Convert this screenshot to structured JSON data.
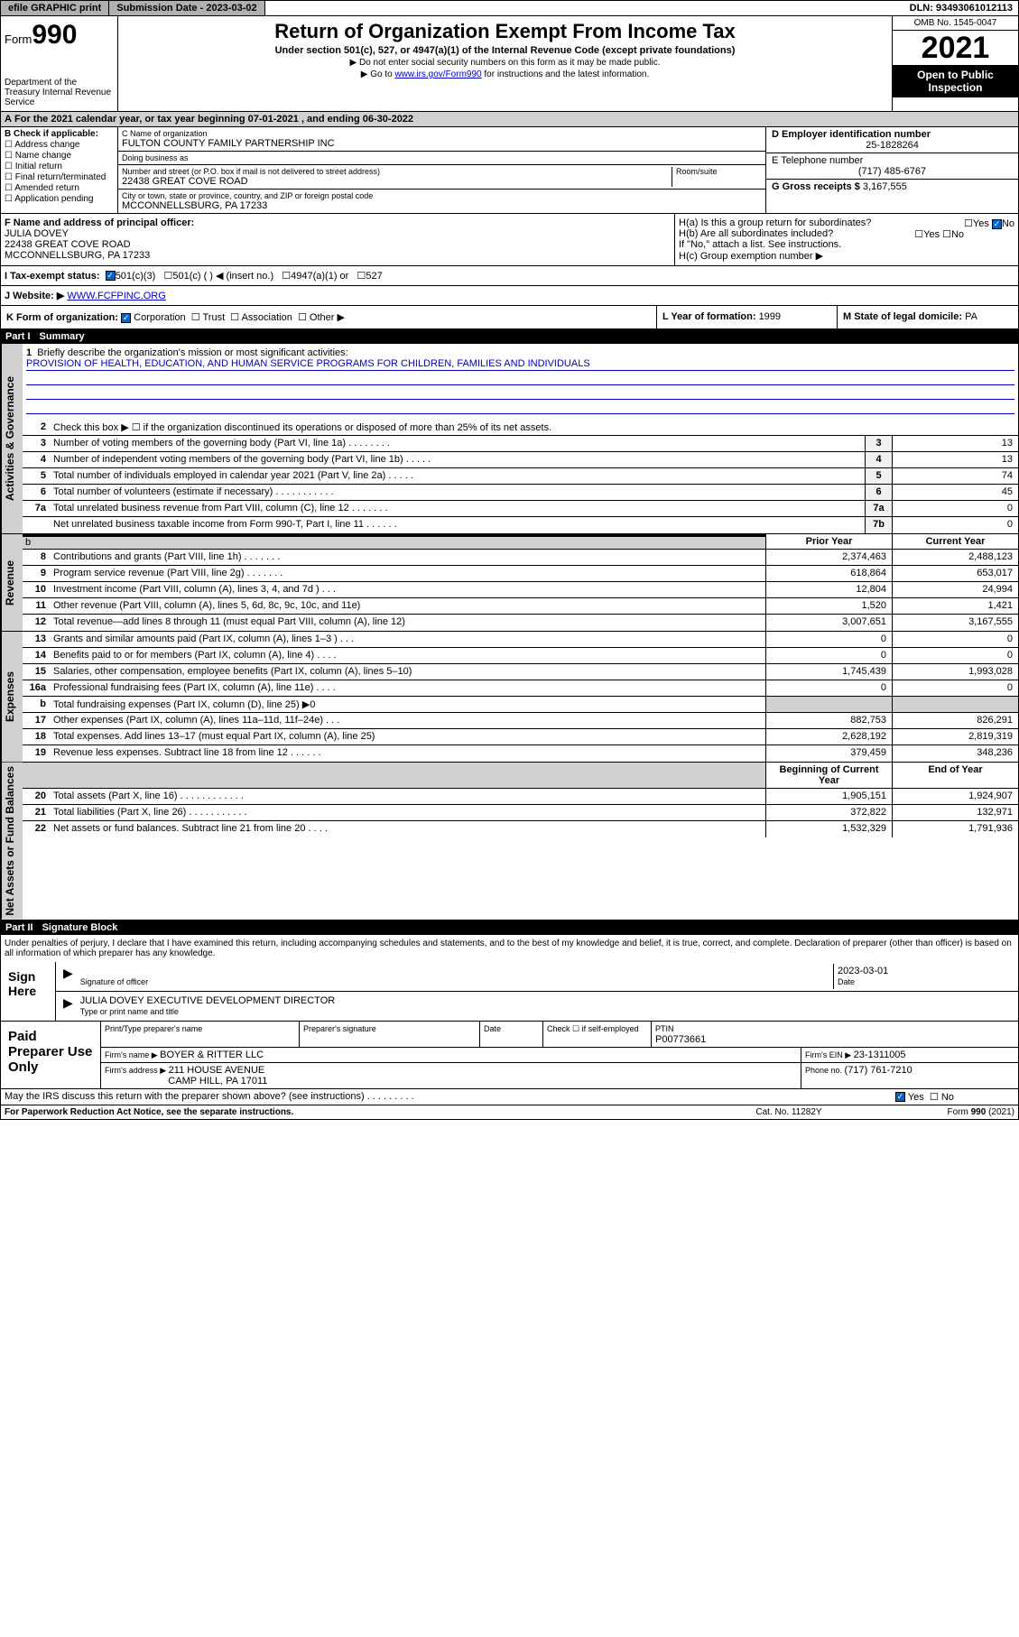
{
  "topbar": {
    "efile": "efile GRAPHIC print",
    "subdate_label": "Submission Date - ",
    "subdate": "2023-03-02",
    "dln_label": "DLN: ",
    "dln": "93493061012113"
  },
  "header": {
    "form_label": "Form",
    "form_num": "990",
    "dept": "Department of the Treasury Internal Revenue Service",
    "title": "Return of Organization Exempt From Income Tax",
    "subtitle": "Under section 501(c), 527, or 4947(a)(1) of the Internal Revenue Code (except private foundations)",
    "note1": "▶ Do not enter social security numbers on this form as it may be made public.",
    "note2_pre": "▶ Go to ",
    "note2_link": "www.irs.gov/Form990",
    "note2_post": " for instructions and the latest information.",
    "omb": "OMB No. 1545-0047",
    "year": "2021",
    "open": "Open to Public Inspection"
  },
  "a": {
    "text": "For the 2021 calendar year, or tax year beginning 07-01-2021   , and ending 06-30-2022"
  },
  "b": {
    "label": "B Check if applicable:",
    "opts": [
      "Address change",
      "Name change",
      "Initial return",
      "Final return/terminated",
      "Amended return",
      "Application pending"
    ]
  },
  "c": {
    "name_label": "C Name of organization",
    "name": "FULTON COUNTY FAMILY PARTNERSHIP INC",
    "dba_label": "Doing business as",
    "dba": "",
    "street_label": "Number and street (or P.O. box if mail is not delivered to street address)",
    "suite_label": "Room/suite",
    "street": "22438 GREAT COVE ROAD",
    "city_label": "City or town, state or province, country, and ZIP or foreign postal code",
    "city": "MCCONNELLSBURG, PA  17233"
  },
  "d": {
    "label": "D Employer identification number",
    "val": "25-1828264"
  },
  "e": {
    "label": "E Telephone number",
    "val": "(717) 485-6767"
  },
  "g": {
    "label": "G Gross receipts $ ",
    "val": "3,167,555"
  },
  "f": {
    "label": "F Name and address of principal officer:",
    "name": "JULIA DOVEY",
    "addr1": "22438 GREAT COVE ROAD",
    "addr2": "MCCONNELLSBURG, PA  17233"
  },
  "h": {
    "a": "H(a)  Is this a group return for subordinates?",
    "b": "H(b)  Are all subordinates included?",
    "b_no": "If \"No,\" attach a list. See instructions.",
    "c": "H(c)  Group exemption number ▶"
  },
  "i": {
    "label": "I   Tax-exempt status:",
    "opts": [
      "501(c)(3)",
      "501(c) (  ) ◀ (insert no.)",
      "4947(a)(1) or",
      "527"
    ]
  },
  "j": {
    "label": "J   Website: ▶ ",
    "val": "WWW.FCFPINC.ORG"
  },
  "k": {
    "label": "K Form of organization: ",
    "opts": [
      "Corporation",
      "Trust",
      "Association",
      "Other ▶"
    ]
  },
  "l": {
    "label": "L Year of formation: ",
    "val": "1999"
  },
  "m": {
    "label": "M State of legal domicile: ",
    "val": "PA"
  },
  "part1": {
    "label": "Part I",
    "title": "Summary"
  },
  "summary": {
    "l1": "Briefly describe the organization's mission or most significant activities:",
    "mission": "PROVISION OF HEALTH, EDUCATION, AND HUMAN SERVICE PROGRAMS FOR CHILDREN, FAMILIES AND INDIVIDUALS",
    "l2": "Check this box ▶ ☐  if the organization discontinued its operations or disposed of more than 25% of its net assets.",
    "rows_gov": [
      {
        "n": "3",
        "d": "Number of voting members of the governing body (Part VI, line 1a)   .   .   .   .   .   .   .   .",
        "b": "3",
        "v": "13"
      },
      {
        "n": "4",
        "d": "Number of independent voting members of the governing body (Part VI, line 1b)   .   .   .   .   .",
        "b": "4",
        "v": "13"
      },
      {
        "n": "5",
        "d": "Total number of individuals employed in calendar year 2021 (Part V, line 2a)   .   .   .   .   .",
        "b": "5",
        "v": "74"
      },
      {
        "n": "6",
        "d": "Total number of volunteers (estimate if necessary)   .   .   .   .   .   .   .   .   .   .   .",
        "b": "6",
        "v": "45"
      },
      {
        "n": "7a",
        "d": "Total unrelated business revenue from Part VIII, column (C), line 12   .   .   .   .   .   .   .",
        "b": "7a",
        "v": "0"
      },
      {
        "n": "",
        "d": "Net unrelated business taxable income from Form 990-T, Part I, line 11   .   .   .   .   .   .",
        "b": "7b",
        "v": "0"
      }
    ],
    "prior_label": "Prior Year",
    "current_label": "Current Year",
    "rows_rev": [
      {
        "n": "8",
        "d": "Contributions and grants (Part VIII, line 1h)    .    .    .    .    .    .    .",
        "p": "2,374,463",
        "c": "2,488,123"
      },
      {
        "n": "9",
        "d": "Program service revenue (Part VIII, line 2g)    .    .    .    .    .    .    .",
        "p": "618,864",
        "c": "653,017"
      },
      {
        "n": "10",
        "d": "Investment income (Part VIII, column (A), lines 3, 4, and 7d )    .    .    .",
        "p": "12,804",
        "c": "24,994"
      },
      {
        "n": "11",
        "d": "Other revenue (Part VIII, column (A), lines 5, 6d, 8c, 9c, 10c, and 11e)",
        "p": "1,520",
        "c": "1,421"
      },
      {
        "n": "12",
        "d": "Total revenue—add lines 8 through 11 (must equal Part VIII, column (A), line 12)",
        "p": "3,007,651",
        "c": "3,167,555"
      }
    ],
    "rows_exp": [
      {
        "n": "13",
        "d": "Grants and similar amounts paid (Part IX, column (A), lines 1–3 )   .   .   .",
        "p": "0",
        "c": "0"
      },
      {
        "n": "14",
        "d": "Benefits paid to or for members (Part IX, column (A), line 4)   .   .   .   .",
        "p": "0",
        "c": "0"
      },
      {
        "n": "15",
        "d": "Salaries, other compensation, employee benefits (Part IX, column (A), lines 5–10)",
        "p": "1,745,439",
        "c": "1,993,028"
      },
      {
        "n": "16a",
        "d": "Professional fundraising fees (Part IX, column (A), line 11e)   .   .   .   .",
        "p": "0",
        "c": "0"
      },
      {
        "n": "b",
        "d": "Total fundraising expenses (Part IX, column (D), line 25) ▶0",
        "p": "",
        "c": "",
        "shaded": true
      },
      {
        "n": "17",
        "d": "Other expenses (Part IX, column (A), lines 11a–11d, 11f–24e)   .   .   .",
        "p": "882,753",
        "c": "826,291"
      },
      {
        "n": "18",
        "d": "Total expenses. Add lines 13–17 (must equal Part IX, column (A), line 25)",
        "p": "2,628,192",
        "c": "2,819,319"
      },
      {
        "n": "19",
        "d": "Revenue less expenses. Subtract line 18 from line 12   .   .   .   .   .   .",
        "p": "379,459",
        "c": "348,236"
      }
    ],
    "begin_label": "Beginning of Current Year",
    "end_label": "End of Year",
    "rows_net": [
      {
        "n": "20",
        "d": "Total assets (Part X, line 16)   .   .   .   .   .   .   .   .   .   .   .   .",
        "p": "1,905,151",
        "c": "1,924,907"
      },
      {
        "n": "21",
        "d": "Total liabilities (Part X, line 26)   .   .   .   .   .   .   .   .   .   .   .",
        "p": "372,822",
        "c": "132,971"
      },
      {
        "n": "22",
        "d": "Net assets or fund balances. Subtract line 21 from line 20   .   .   .   .",
        "p": "1,532,329",
        "c": "1,791,936"
      }
    ],
    "vtabs": [
      "Activities & Governance",
      "Revenue",
      "Expenses",
      "Net Assets or Fund Balances"
    ]
  },
  "part2": {
    "label": "Part II",
    "title": "Signature Block"
  },
  "sig": {
    "penalty": "Under penalties of perjury, I declare that I have examined this return, including accompanying schedules and statements, and to the best of my knowledge and belief, it is true, correct, and complete. Declaration of preparer (other than officer) is based on all information of which preparer has any knowledge.",
    "sign_here": "Sign Here",
    "sig_officer": "Signature of officer",
    "date_label": "Date",
    "sig_date": "2023-03-01",
    "name_title": "JULIA DOVEY EXECUTIVE DEVELOPMENT DIRECTOR",
    "name_title_label": "Type or print name and title"
  },
  "paid": {
    "label": "Paid Preparer Use Only",
    "print_name_label": "Print/Type preparer's name",
    "prep_sig_label": "Preparer's signature",
    "date_label": "Date",
    "check_label": "Check ☐ if self-employed",
    "ptin_label": "PTIN",
    "ptin": "P00773661",
    "firm_name_label": "Firm's name    ▶ ",
    "firm_name": "BOYER & RITTER LLC",
    "firm_ein_label": "Firm's EIN ▶ ",
    "firm_ein": "23-1311005",
    "firm_addr_label": "Firm's address ▶ ",
    "firm_addr1": "211 HOUSE AVENUE",
    "firm_addr2": "CAMP HILL, PA  17011",
    "phone_label": "Phone no. ",
    "phone": "(717) 761-7210"
  },
  "may": {
    "text": "May the IRS discuss this return with the preparer shown above? (see instructions)    .    .    .    .    .    .    .    .    .",
    "yes": "Yes",
    "no": "No"
  },
  "footer": {
    "left": "For Paperwork Reduction Act Notice, see the separate instructions.",
    "mid": "Cat. No. 11282Y",
    "right": "Form 990 (2021)"
  }
}
